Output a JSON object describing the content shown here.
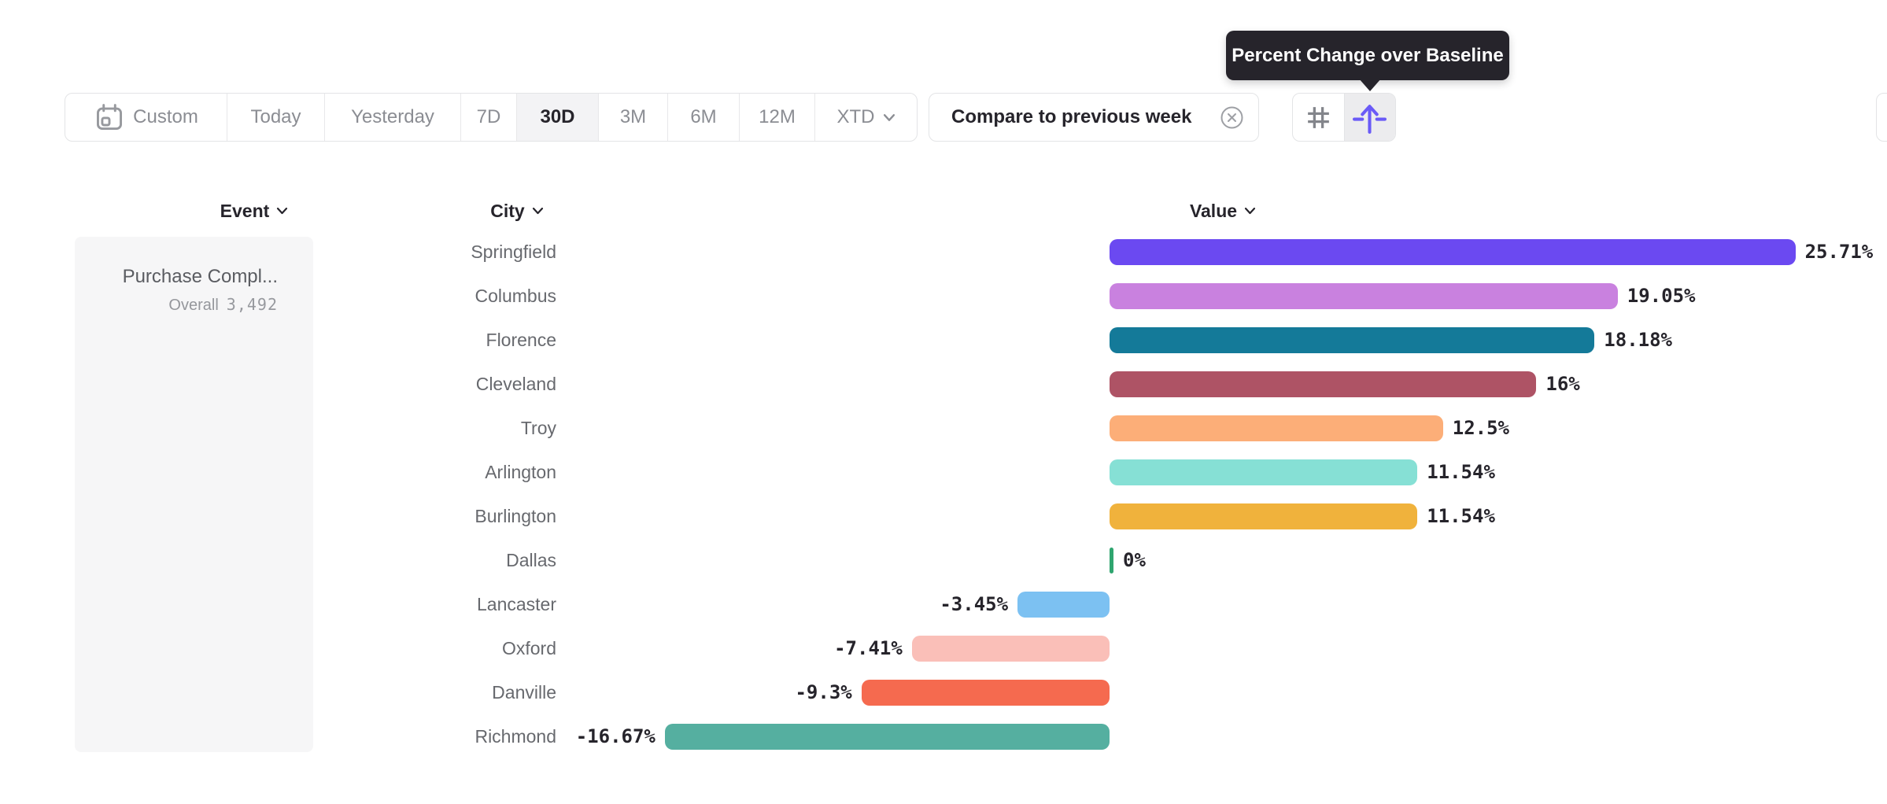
{
  "tooltip": {
    "text": "Percent Change over Baseline"
  },
  "toolbar": {
    "items": [
      {
        "label": "Custom",
        "icon": "calendar-icon",
        "selected": false
      },
      {
        "label": "Today",
        "selected": false
      },
      {
        "label": "Yesterday",
        "selected": false
      },
      {
        "label": "7D",
        "selected": false
      },
      {
        "label": "30D",
        "selected": true
      },
      {
        "label": "3M",
        "selected": false
      },
      {
        "label": "6M",
        "selected": false
      },
      {
        "label": "12M",
        "selected": false
      },
      {
        "label": "XTD",
        "chevron": true,
        "selected": false
      }
    ]
  },
  "compare": {
    "label": "Compare to previous week",
    "close_icon": "circle-x-icon"
  },
  "view_toggle": {
    "left_icon": "grid-hash-icon",
    "right_icon": "baseline-lift-icon",
    "active": "right",
    "active_icon_color": "#6A5AF7"
  },
  "columns": {
    "event": "Event",
    "city": "City",
    "value": "Value"
  },
  "event_panel": {
    "title": "Purchase Compl...",
    "segment_label": "Overall",
    "segment_value": "3,492"
  },
  "chart_data": {
    "type": "bar",
    "orientation": "horizontal",
    "title": "Percent Change over Baseline",
    "unit": "%",
    "baseline": 0,
    "xlim": [
      -20,
      29
    ],
    "categories": [
      "Springfield",
      "Columbus",
      "Florence",
      "Cleveland",
      "Troy",
      "Arlington",
      "Burlington",
      "Dallas",
      "Lancaster",
      "Oxford",
      "Danville",
      "Richmond"
    ],
    "values": [
      25.71,
      19.05,
      18.18,
      16,
      12.5,
      11.54,
      11.54,
      0,
      -3.45,
      -7.41,
      -9.3,
      -16.67
    ],
    "value_labels": [
      "25.71%",
      "19.05%",
      "18.18%",
      "16%",
      "12.5%",
      "11.54%",
      "11.54%",
      "0%",
      "-3.45%",
      "-7.41%",
      "-9.3%",
      "-16.67%"
    ],
    "bar_colors": [
      "#6B49F1",
      "#C981DF",
      "#147A99",
      "#AE5365",
      "#FCAE78",
      "#86E0D5",
      "#F0B23C",
      "#2FA56F",
      "#7CC1F2",
      "#FABFB8",
      "#F56A4F",
      "#55AFA0"
    ]
  },
  "colors": {
    "tooltip_bg": "#26242B",
    "border": "#E3E4E6",
    "selected_bg": "#F3F3F5",
    "text_dark": "#26242B",
    "text_gray": "#8B8D93",
    "city_gray": "#67696E",
    "panel_bg": "#F6F6F7",
    "accent_purple": "#6A5AF7",
    "zero_green": "#2FA56F"
  }
}
